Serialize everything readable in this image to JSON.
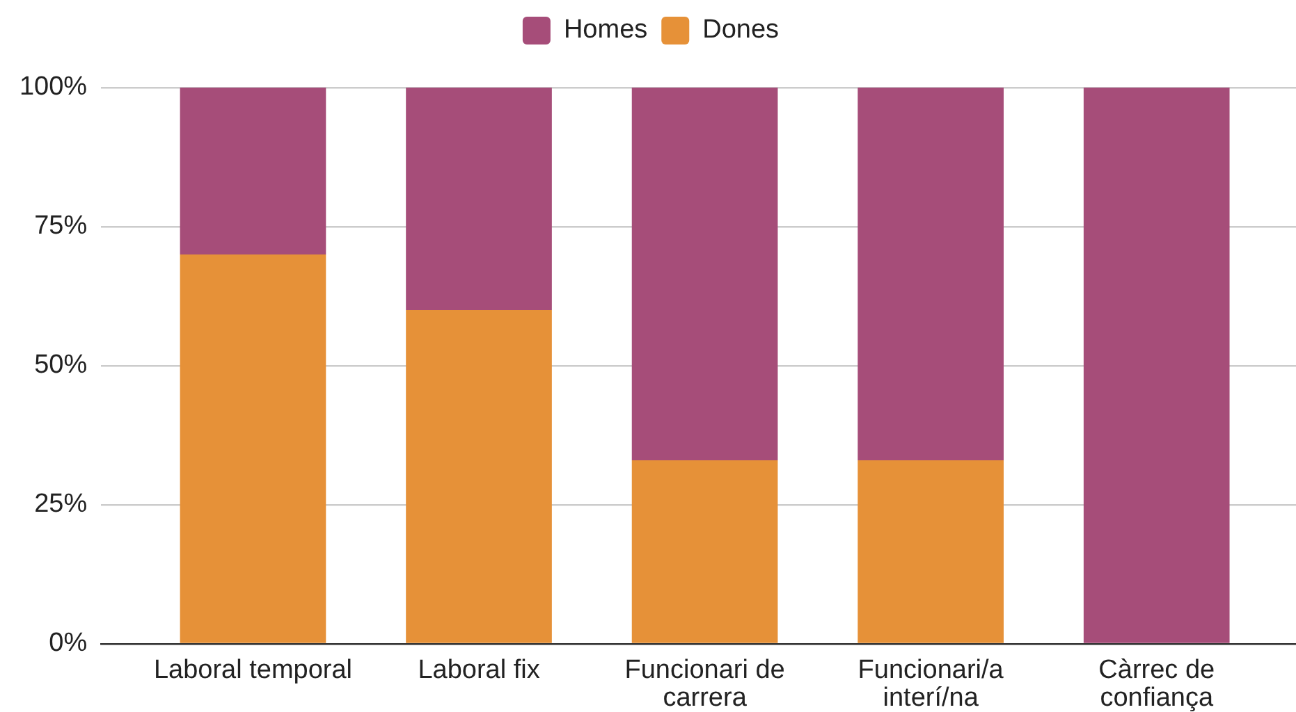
{
  "chart_data": {
    "type": "bar",
    "categories": [
      "Laboral temporal",
      "Laboral fix",
      "Funcionari de carrera",
      "Funcionari/a interí/na",
      "Càrrec de confiança"
    ],
    "series": [
      {
        "name": "Dones",
        "color": "#e69138",
        "values": [
          70,
          60,
          33,
          33,
          0
        ]
      },
      {
        "name": "Homes",
        "color": "#a64d79",
        "values": [
          30,
          40,
          67,
          67,
          100
        ]
      }
    ],
    "stacked": true,
    "ylim": [
      0,
      100
    ],
    "yticks": [
      {
        "value": 0,
        "label": "0%"
      },
      {
        "value": 25,
        "label": "25%"
      },
      {
        "value": 50,
        "label": "50%"
      },
      {
        "value": 75,
        "label": "75%"
      },
      {
        "value": 100,
        "label": "100%"
      }
    ],
    "grid": "y",
    "legend": "top"
  }
}
